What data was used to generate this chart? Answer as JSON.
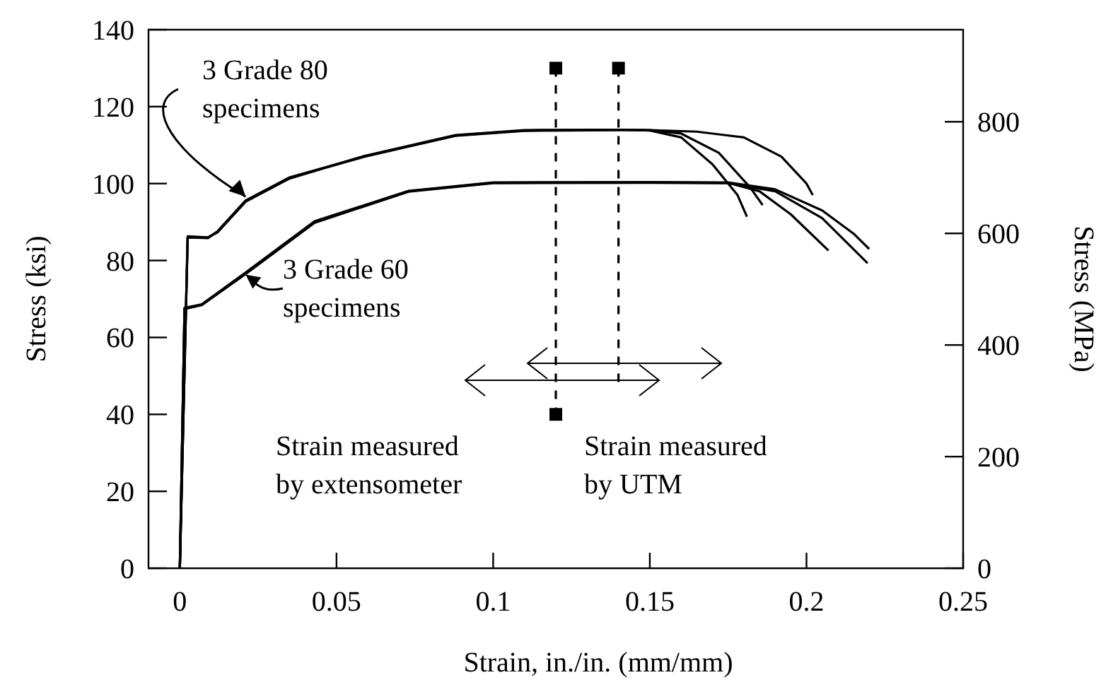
{
  "chart_data": {
    "type": "line",
    "xlabel": "Strain, in./in. (mm/mm)",
    "ylabel": "Stress (ksi)",
    "y2label": "Stress (MPa)",
    "xlim": [
      -0.01,
      0.25
    ],
    "xticks": [
      0,
      0.05,
      0.1,
      0.15,
      0.2,
      0.25
    ],
    "ylim": [
      0,
      140
    ],
    "yticks": [
      0,
      20,
      40,
      60,
      80,
      100,
      120,
      140
    ],
    "y2lim": [
      0,
      965
    ],
    "y2ticks": [
      0,
      200,
      400,
      600,
      800
    ],
    "grid": false,
    "line_style": "solid",
    "annotations": [
      {
        "text": "3 Grade 80\nspecimens",
        "x": 0.021,
        "y": 95.5
      },
      {
        "text": "3 Grade 60\nspecimens",
        "x": 0.021,
        "y": 76.7
      },
      "Strain measured\nby extensometer",
      "Strain measured\nby UTM"
    ],
    "series": [
      {
        "color": "#000000",
        "x": [
          0,
          0.0025,
          0.009,
          0.012,
          0.021,
          0.035,
          0.059,
          0.088,
          0.11,
          0.14,
          0.15,
          0.16,
          0.17,
          0.178,
          0.181
        ],
        "values": [
          0,
          86,
          86,
          87.5,
          95.5,
          101.5,
          107,
          112.5,
          113.8,
          114,
          113.8,
          112,
          105,
          97,
          91.4
        ]
      },
      {
        "color": "#000000",
        "x": [
          0,
          0.0025,
          0.009,
          0.012,
          0.021,
          0.035,
          0.059,
          0.088,
          0.11,
          0.14,
          0.15,
          0.16,
          0.172,
          0.182,
          0.186
        ],
        "values": [
          0,
          86.3,
          86,
          87.3,
          95.3,
          101.3,
          107.2,
          112.6,
          113.9,
          114,
          113.9,
          113,
          108,
          99,
          94.4
        ]
      },
      {
        "color": "#000000",
        "x": [
          0,
          0.0025,
          0.009,
          0.012,
          0.021,
          0.035,
          0.059,
          0.088,
          0.11,
          0.14,
          0.15,
          0.165,
          0.18,
          0.192,
          0.2,
          0.202
        ],
        "values": [
          0,
          86,
          85.8,
          87.6,
          95.6,
          101.6,
          107.1,
          112.4,
          113.7,
          113.9,
          113.9,
          113.5,
          112,
          107,
          100,
          97
        ]
      },
      {
        "color": "#000000",
        "x": [
          0,
          0.0015,
          0.007,
          0.021,
          0.043,
          0.073,
          0.1,
          0.15,
          0.175,
          0.185,
          0.195,
          0.207
        ],
        "values": [
          0,
          67.5,
          68.5,
          76.7,
          90,
          98,
          100.2,
          100.3,
          100.2,
          98,
          92,
          82.6
        ]
      },
      {
        "color": "#000000",
        "x": [
          0,
          0.0015,
          0.007,
          0.021,
          0.043,
          0.073,
          0.1,
          0.15,
          0.175,
          0.19,
          0.205,
          0.215,
          0.22
        ],
        "values": [
          0,
          67.7,
          68.6,
          76.9,
          90.2,
          98.1,
          100.3,
          100.4,
          100.3,
          98.5,
          93,
          87,
          83
        ]
      },
      {
        "color": "#000000",
        "x": [
          0,
          0.0015,
          0.007,
          0.021,
          0.043,
          0.073,
          0.1,
          0.15,
          0.175,
          0.19,
          0.205,
          0.2195
        ],
        "values": [
          0,
          67.4,
          68.4,
          76.5,
          89.8,
          97.9,
          100.1,
          100.2,
          100.1,
          98,
          91,
          79.3
        ]
      },
      {
        "type": "line",
        "line_style": "dashed",
        "color": "#000000",
        "x": [
          0.12,
          0.12
        ],
        "values": [
          130,
          40
        ]
      },
      {
        "type": "line",
        "line_style": "dashed",
        "color": "#000000",
        "x": [
          0.14,
          0.14
        ],
        "values": [
          130,
          48
        ]
      },
      {
        "type": "scatter",
        "marker": "square",
        "color": "#000000",
        "x": [
          0.12,
          0.14,
          0.12
        ],
        "values": [
          130,
          130,
          40
        ]
      }
    ]
  }
}
